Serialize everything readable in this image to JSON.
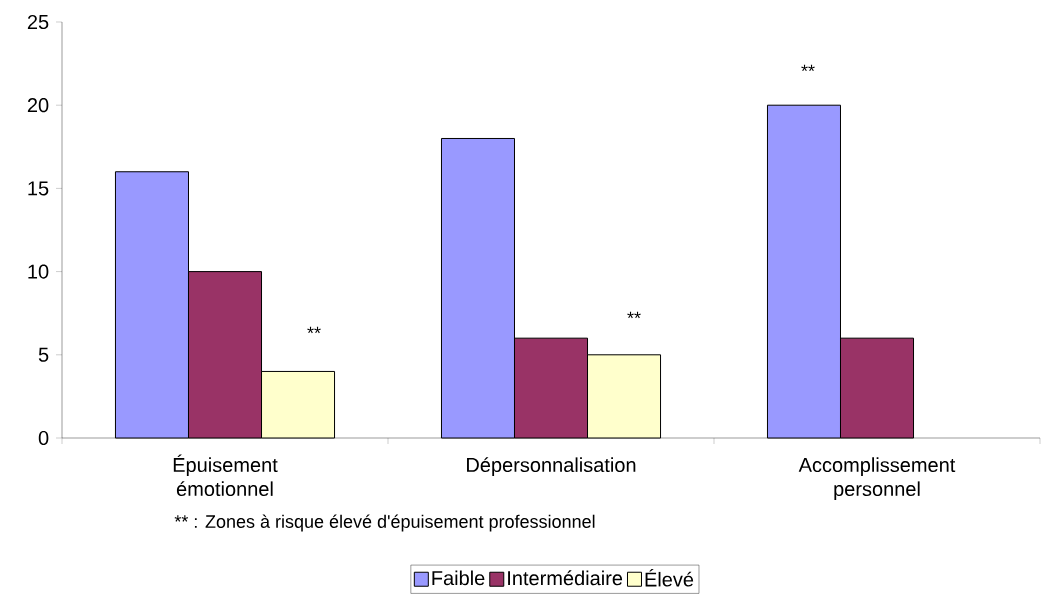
{
  "chart_data": {
    "type": "bar",
    "categories": [
      "Épuisement émotionnel",
      "Dépersonnalisation",
      "Accomplissement personnel"
    ],
    "series": [
      {
        "name": "Faible",
        "color": "#9999ff",
        "values": [
          16,
          18,
          20
        ]
      },
      {
        "name": "Intermédiaire",
        "color": "#993366",
        "values": [
          10,
          6,
          6
        ]
      },
      {
        "name": "Élevé",
        "color": "#ffffcc",
        "values": [
          4,
          5,
          null
        ]
      }
    ],
    "ylim": [
      0,
      25
    ],
    "yticks": [
      0,
      5,
      10,
      15,
      20,
      25
    ],
    "grid": false,
    "legend": "bottom",
    "annotations": [
      "**",
      "**",
      "**",
      "** : Zones à risque élevé d'épuisement professionnel"
    ]
  }
}
